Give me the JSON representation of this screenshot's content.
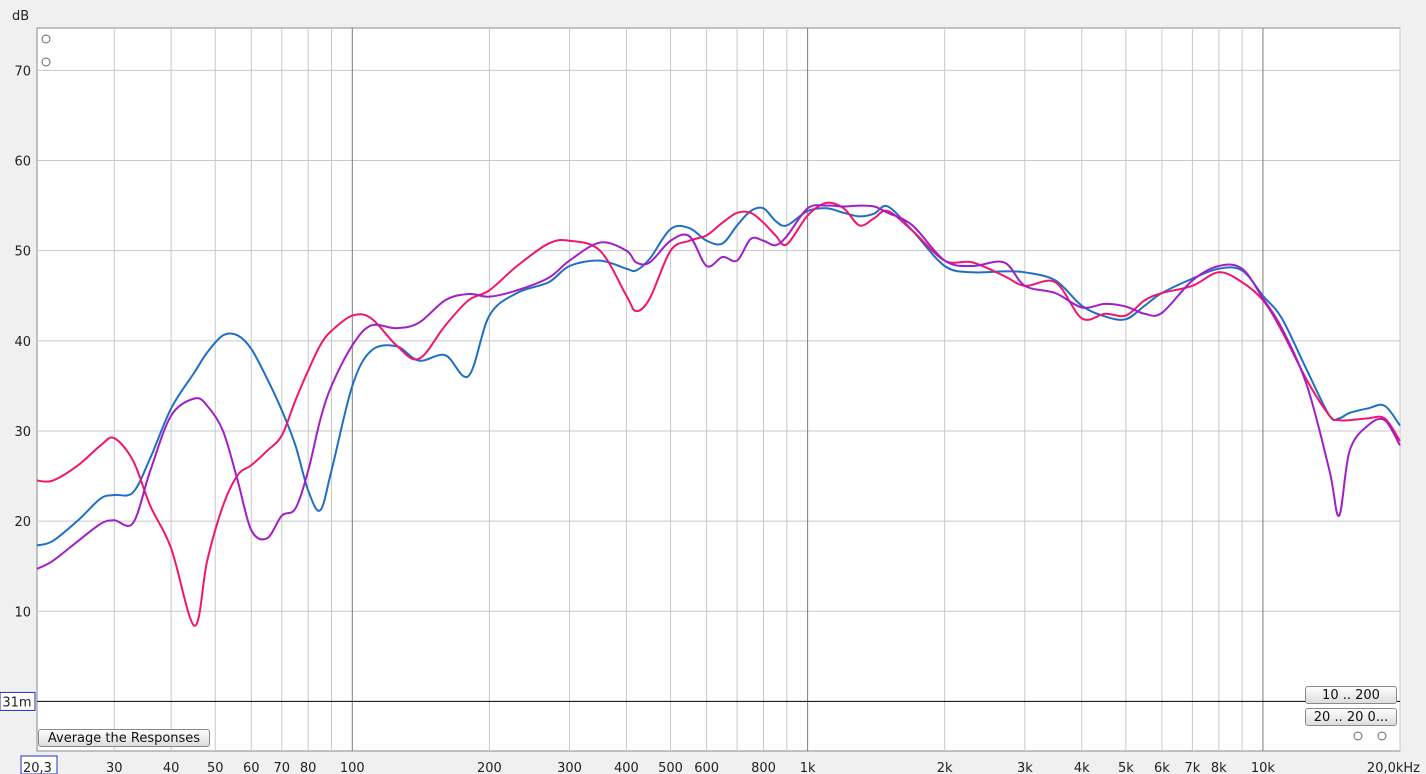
{
  "chart_data": {
    "type": "line",
    "y_label": "dB",
    "x": [
      20.3,
      22,
      25,
      28,
      30,
      33,
      36,
      40,
      45,
      48,
      52,
      56,
      60,
      65,
      70,
      75,
      80,
      85,
      90,
      100,
      110,
      125,
      140,
      160,
      180,
      200,
      230,
      270,
      300,
      350,
      400,
      420,
      450,
      500,
      550,
      600,
      650,
      700,
      750,
      800,
      850,
      900,
      1000,
      1100,
      1200,
      1300,
      1400,
      1500,
      1700,
      2000,
      2300,
      2700,
      3000,
      3500,
      4000,
      4500,
      5000,
      5500,
      6000,
      7000,
      8000,
      9000,
      10000,
      11000,
      12500,
      14000,
      14700,
      15500,
      17000,
      18500,
      20000
    ],
    "series": [
      {
        "color": "#1f6fc5",
        "values": [
          17.3,
          17.8,
          20.1,
          22.5,
          22.9,
          23.2,
          27,
          32.5,
          36.5,
          38.7,
          40.6,
          40.6,
          39.1,
          35.8,
          32.3,
          28.4,
          23.4,
          21.2,
          25.6,
          35,
          38.9,
          39.4,
          37.8,
          38.4,
          36.1,
          42.8,
          45.3,
          46.5,
          48.3,
          48.9,
          48,
          47.8,
          49.1,
          52.4,
          52.5,
          51.1,
          50.8,
          52.8,
          54.4,
          54.7,
          53.3,
          52.8,
          54.4,
          54.7,
          54.2,
          53.8,
          54.1,
          54.9,
          52.2,
          48.3,
          47.6,
          47.7,
          47.6,
          46.7,
          43.9,
          42.7,
          42.4,
          43.9,
          45.3,
          46.9,
          48,
          47.8,
          45,
          42.5,
          36.7,
          31.7,
          31.4,
          32,
          32.5,
          32.8,
          30.6
        ]
      },
      {
        "color": "#f0166e",
        "values": [
          24.5,
          24.5,
          26.2,
          28.4,
          29.2,
          26.7,
          21.7,
          17,
          8.4,
          15.6,
          21.7,
          25.1,
          26.2,
          27.8,
          29.5,
          33.4,
          36.7,
          39.5,
          41.1,
          42.8,
          42.5,
          39.5,
          38,
          41.7,
          44.5,
          45.6,
          48.3,
          50.8,
          51.1,
          50,
          45,
          43.3,
          44.7,
          50,
          51.1,
          51.7,
          53.1,
          54.2,
          54.2,
          53.1,
          51.7,
          50.7,
          53.9,
          55.3,
          54.7,
          52.8,
          53.6,
          54.4,
          52.2,
          48.9,
          48.7,
          47.2,
          46.1,
          46.5,
          42.5,
          43,
          42.8,
          44.5,
          45.3,
          46.1,
          47.6,
          46.5,
          44.5,
          41.1,
          35.6,
          31.7,
          31.2,
          31.2,
          31.4,
          31.4,
          28.9
        ]
      },
      {
        "color": "#a21fc7",
        "values": [
          14.7,
          15.6,
          17.8,
          19.7,
          20.1,
          19.8,
          25.6,
          31.7,
          33.6,
          32.8,
          30,
          24.5,
          19,
          18.1,
          20.6,
          21.4,
          25.6,
          31.2,
          35,
          39.5,
          41.7,
          41.4,
          42,
          44.5,
          45.2,
          44.9,
          45.6,
          47,
          48.9,
          50.9,
          50,
          48.7,
          48.7,
          51.1,
          51.6,
          48.3,
          49.3,
          48.9,
          51.3,
          51.1,
          50.6,
          51.6,
          54.7,
          55,
          54.9,
          55,
          54.9,
          54.2,
          52.8,
          48.9,
          48.3,
          48.7,
          46.1,
          45.3,
          43.7,
          44.1,
          43.8,
          43,
          43.1,
          46.7,
          48.3,
          48,
          44.7,
          41.4,
          35,
          25.6,
          20.6,
          27.8,
          30.6,
          31.2,
          28.4
        ]
      }
    ],
    "xlim": [
      20.3,
      20000
    ],
    "xscale": "log",
    "xticks": [
      {
        "value": 20.3,
        "label": "20,3"
      },
      30,
      40,
      50,
      60,
      70,
      80,
      100,
      200,
      300,
      400,
      500,
      600,
      800,
      {
        "value": 1000,
        "label": "1k"
      },
      {
        "value": 2000,
        "label": "2k"
      },
      {
        "value": 3000,
        "label": "3k"
      },
      {
        "value": 4000,
        "label": "4k"
      },
      {
        "value": 5000,
        "label": "5k"
      },
      {
        "value": 6000,
        "label": "6k"
      },
      {
        "value": 7000,
        "label": "7k"
      },
      {
        "value": 8000,
        "label": "8k"
      },
      {
        "value": 10000,
        "label": "10k"
      },
      {
        "value": 20000,
        "label": "20,0kHz"
      }
    ],
    "xgrid_minor": [
      90,
      700,
      900,
      9000
    ],
    "ylim": [
      -5.5,
      74.7
    ],
    "yticks": [
      10,
      20,
      30,
      40,
      50,
      60,
      70
    ],
    "grid": true,
    "reference_line": {
      "value": 0,
      "label": "31m"
    }
  },
  "ui": {
    "range_buttons": [
      "10 .. 200",
      "20 .. 20 0..."
    ],
    "average_button": "Average the Responses"
  }
}
